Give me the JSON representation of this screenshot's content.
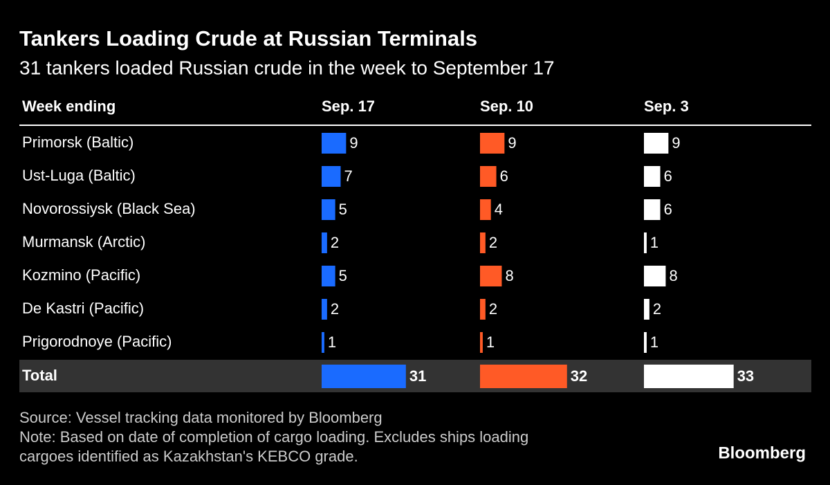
{
  "title": "Tankers Loading Crude at Russian Terminals",
  "subtitle": "31 tankers loaded Russian crude in the week to September 17",
  "table": {
    "header": [
      "Week ending",
      "Sep. 17",
      "Sep. 10",
      "Sep. 3"
    ],
    "colors": [
      "#1a6bff",
      "#ff5a26",
      "#ffffff"
    ],
    "rows": [
      {
        "label": "Primorsk (Baltic)",
        "values": [
          9,
          9,
          9
        ]
      },
      {
        "label": "Ust-Luga (Baltic)",
        "values": [
          7,
          6,
          6
        ]
      },
      {
        "label": "Novorossiysk (Black Sea)",
        "values": [
          5,
          4,
          6
        ]
      },
      {
        "label": "Murmansk (Arctic)",
        "values": [
          2,
          2,
          1
        ]
      },
      {
        "label": "Kozmino (Pacific)",
        "values": [
          5,
          8,
          8
        ]
      },
      {
        "label": "De Kastri (Pacific)",
        "values": [
          2,
          2,
          2
        ]
      },
      {
        "label": "Prigorodnoye (Pacific)",
        "values": [
          1,
          1,
          1
        ]
      }
    ],
    "total": {
      "label": "Total",
      "values": [
        31,
        32,
        33
      ]
    }
  },
  "notes": [
    "Source: Vessel tracking data monitored by Bloomberg",
    "Note: Based on date of completion of cargo loading. Excludes ships loading",
    "cargoes identified as Kazakhstan's KEBCO grade."
  ],
  "logo": "Bloomberg"
}
